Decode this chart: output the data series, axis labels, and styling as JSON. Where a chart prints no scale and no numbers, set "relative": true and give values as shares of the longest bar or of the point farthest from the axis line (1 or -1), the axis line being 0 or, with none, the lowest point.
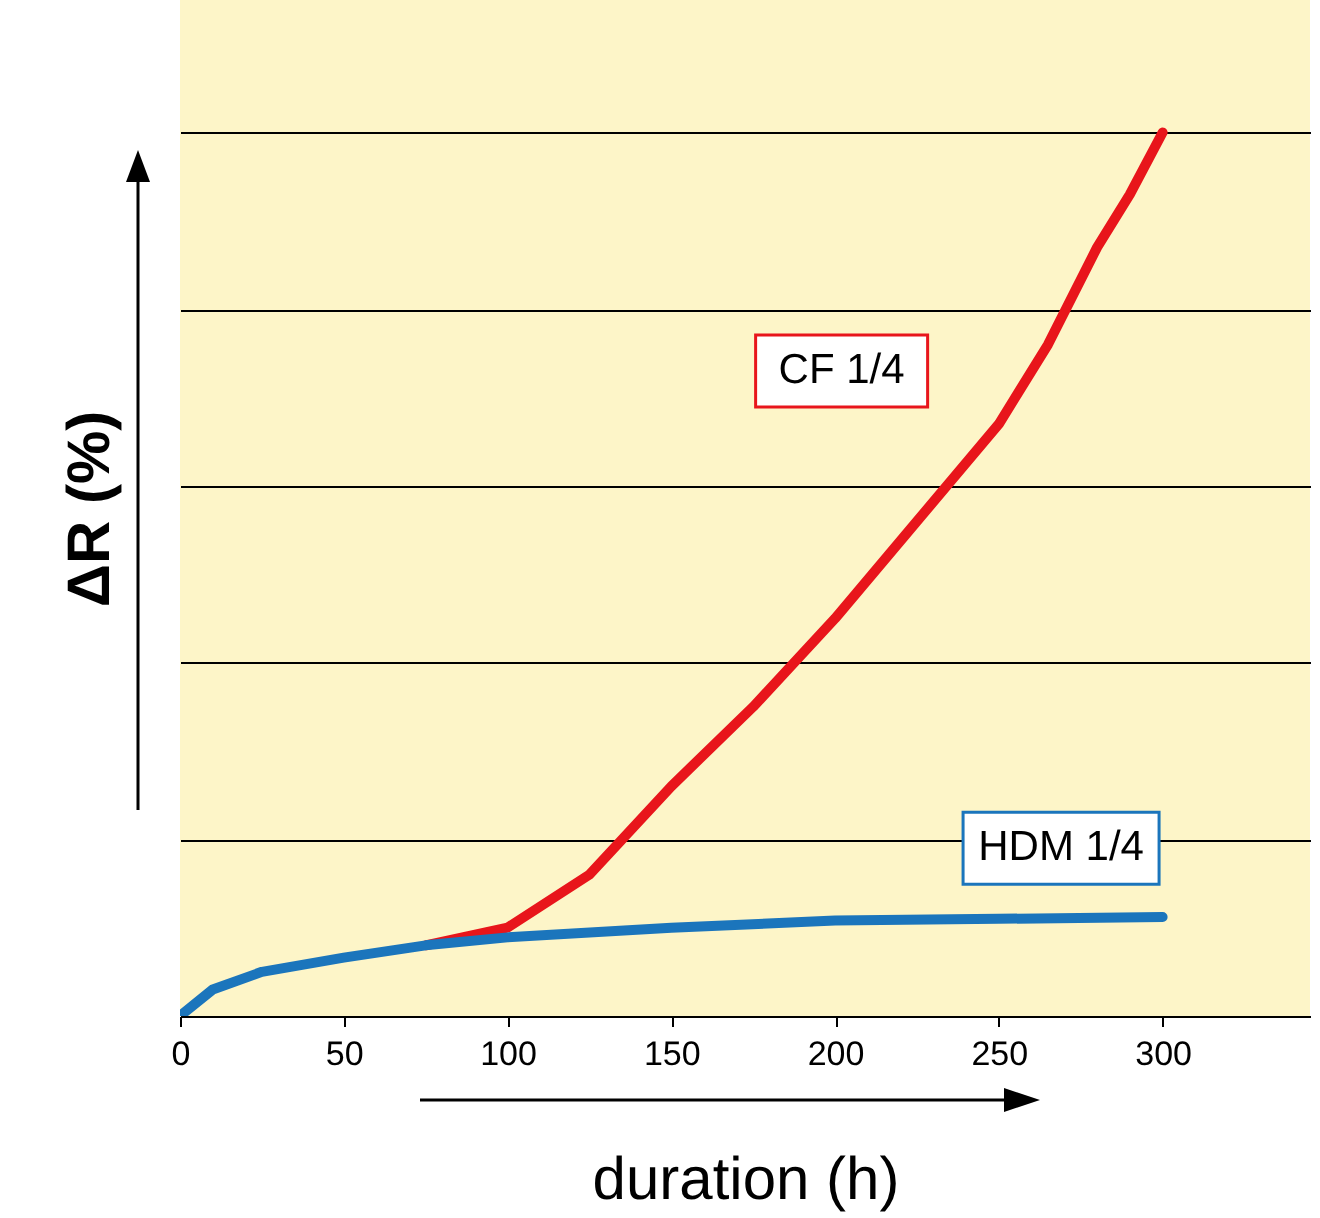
{
  "chart_data": {
    "type": "line",
    "xlabel": "duration (h)",
    "ylabel": "ΔR (%)",
    "relative": true,
    "grid": "y",
    "legend": false,
    "marker": "none",
    "line_style": "solid",
    "xlim": [
      0,
      345
    ],
    "xticks": [
      0,
      50,
      100,
      150,
      200,
      250,
      300
    ],
    "series": [
      {
        "name": "CF 1/4",
        "color": "#e8151b",
        "x": [
          75,
          100,
          125,
          150,
          175,
          200,
          225,
          250,
          265,
          280,
          290,
          300
        ],
        "values": [
          0.08,
          0.1,
          0.16,
          0.26,
          0.35,
          0.45,
          0.56,
          0.67,
          0.76,
          0.87,
          0.93,
          1.0
        ]
      },
      {
        "name": "HDM 1/4",
        "color": "#1b75bc",
        "x": [
          0,
          10,
          25,
          50,
          75,
          100,
          150,
          200,
          250,
          300
        ],
        "values": [
          0,
          0.03,
          0.05,
          0.066,
          0.08,
          0.089,
          0.1,
          0.108,
          0.11,
          0.112
        ]
      }
    ]
  }
}
